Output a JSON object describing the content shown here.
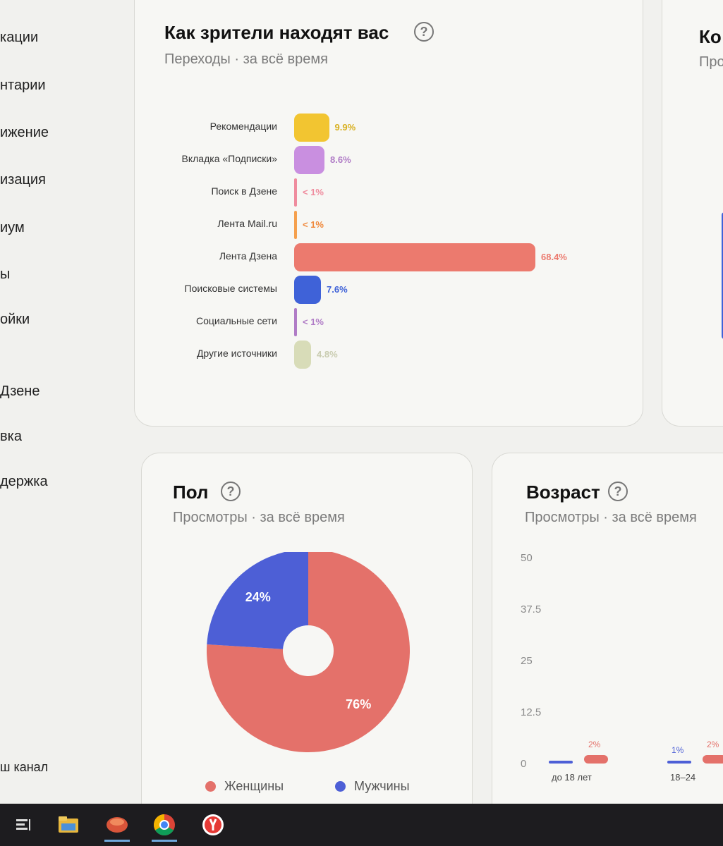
{
  "sidebar": {
    "items": [
      {
        "label": "кации"
      },
      {
        "label": "нтарии"
      },
      {
        "label": "ижение"
      },
      {
        "label": "изация"
      },
      {
        "label": "иум"
      },
      {
        "label": "ы"
      },
      {
        "label": "ойки"
      },
      {
        "label": "Дзене"
      },
      {
        "label": "вка"
      },
      {
        "label": "держка"
      },
      {
        "label": "ш канал"
      }
    ]
  },
  "traffic": {
    "title": "Как зрители находят вас",
    "subtitle": "Переходы · за всё время",
    "help": "?"
  },
  "next_card": {
    "title": "Ко",
    "subtitle": "Про"
  },
  "gender": {
    "title": "Пол",
    "subtitle": "Просмотры · за всё время",
    "help": "?",
    "legend": [
      {
        "label": "Женщины",
        "color": "#e4716a"
      },
      {
        "label": "Мужчины",
        "color": "#4d5fd6"
      }
    ]
  },
  "age": {
    "title": "Возраст",
    "subtitle": "Просмотры · за всё время",
    "help": "?"
  },
  "chart_data": [
    {
      "type": "bar",
      "orientation": "horizontal",
      "categories": [
        "Рекомендации",
        "Вкладка «Подписки»",
        "Поиск в Дзене",
        "Лента Mail.ru",
        "Лента Дзена",
        "Поисковые системы",
        "Социальные сети",
        "Другие источники"
      ],
      "values": [
        9.9,
        8.6,
        0.5,
        0.5,
        68.4,
        7.6,
        0.5,
        4.8
      ],
      "value_labels": [
        "9.9%",
        "8.6%",
        "< 1%",
        "< 1%",
        "68.4%",
        "7.6%",
        "< 1%",
        "4.8%"
      ],
      "colors": [
        "#f2c531",
        "#c98fe0",
        "#ef8c9e",
        "#f5a04d",
        "#ec7a6e",
        "#3f62d8",
        "#b07cc6",
        "#d8dcb8"
      ],
      "unit": "%"
    },
    {
      "type": "pie",
      "style": "donut",
      "labels": [
        "Женщины",
        "Мужчины"
      ],
      "values": [
        76,
        24
      ],
      "value_labels": [
        "76%",
        "24%"
      ],
      "colors": [
        "#e4716a",
        "#4d5fd6"
      ]
    },
    {
      "type": "bar",
      "categories": [
        "до 18 лет",
        "18–24"
      ],
      "series": [
        {
          "values": [
            1,
            1
          ],
          "labels": [
            "",
            "1%"
          ],
          "color": "#4d5fd6"
        },
        {
          "values": [
            2,
            2
          ],
          "labels": [
            "2%",
            "2%"
          ],
          "color": "#e4716a"
        }
      ],
      "y_ticks": [
        "50",
        "37.5",
        "25",
        "12.5",
        "0"
      ],
      "ylim": [
        0,
        50
      ]
    }
  ],
  "taskbar": {
    "items": [
      {
        "icon": "task-view-icon"
      },
      {
        "icon": "file-explorer-icon"
      },
      {
        "icon": "app-icon"
      },
      {
        "icon": "chrome-icon"
      },
      {
        "icon": "yandex-browser-icon"
      }
    ]
  }
}
